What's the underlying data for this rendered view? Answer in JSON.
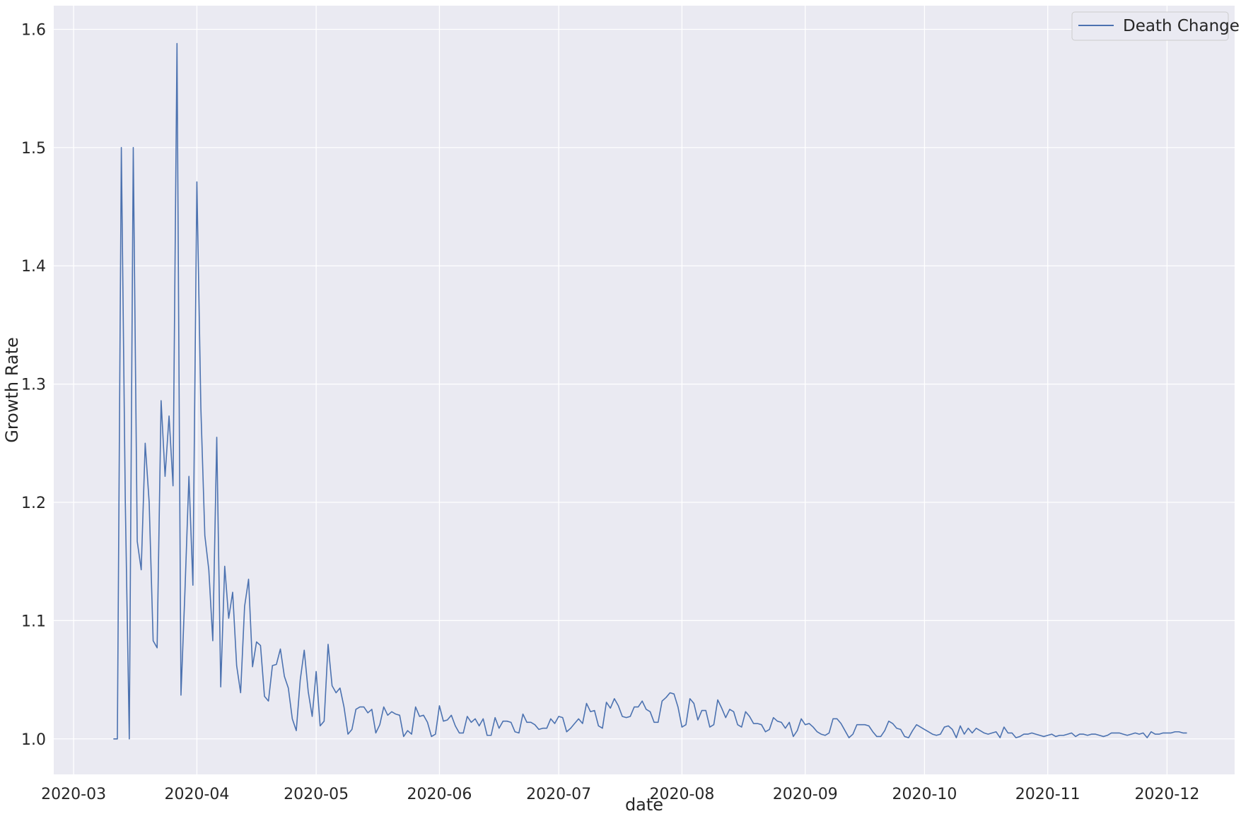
{
  "chart_data": {
    "type": "line",
    "title": "",
    "xlabel": "date",
    "ylabel": "Growth Rate",
    "grid": true,
    "legend_position": "top-right",
    "colors": {
      "background": "#eaeaf2",
      "grid": "#ffffff",
      "line": "#4c72b0"
    },
    "xlim": [
      "2020-02-25",
      "2020-12-18"
    ],
    "ylim": [
      0.97,
      1.62
    ],
    "x_ticks": [
      "2020-03-01",
      "2020-04-01",
      "2020-05-01",
      "2020-06-01",
      "2020-07-01",
      "2020-08-01",
      "2020-09-01",
      "2020-10-01",
      "2020-11-01",
      "2020-12-01"
    ],
    "x_tick_labels": [
      "2020-03",
      "2020-04",
      "2020-05",
      "2020-06",
      "2020-07",
      "2020-08",
      "2020-09",
      "2020-10",
      "2020-11",
      "2020-12"
    ],
    "y_ticks": [
      1.0,
      1.1,
      1.2,
      1.3,
      1.4,
      1.5,
      1.6
    ],
    "y_tick_labels": [
      "1.0",
      "1.1",
      "1.2",
      "1.3",
      "1.4",
      "1.5",
      "1.6"
    ],
    "series": [
      {
        "name": "Death Change",
        "start_date": "2020-03-11",
        "values": [
          1.0,
          1.0,
          1.5,
          1.2,
          1.0,
          1.5,
          1.167,
          1.143,
          1.25,
          1.2,
          1.083,
          1.077,
          1.286,
          1.222,
          1.273,
          1.214,
          1.588,
          1.037,
          1.125,
          1.222,
          1.13,
          1.471,
          1.28,
          1.172,
          1.143,
          1.083,
          1.255,
          1.044,
          1.146,
          1.102,
          1.124,
          1.062,
          1.039,
          1.112,
          1.135,
          1.061,
          1.082,
          1.079,
          1.036,
          1.032,
          1.062,
          1.063,
          1.076,
          1.053,
          1.043,
          1.017,
          1.007,
          1.05,
          1.075,
          1.04,
          1.019,
          1.057,
          1.011,
          1.015,
          1.08,
          1.045,
          1.039,
          1.043,
          1.027,
          1.004,
          1.008,
          1.025,
          1.027,
          1.027,
          1.022,
          1.025,
          1.005,
          1.012,
          1.027,
          1.02,
          1.023,
          1.021,
          1.02,
          1.002,
          1.007,
          1.004,
          1.027,
          1.019,
          1.02,
          1.014,
          1.002,
          1.004,
          1.028,
          1.015,
          1.016,
          1.02,
          1.011,
          1.005,
          1.005,
          1.019,
          1.014,
          1.017,
          1.011,
          1.017,
          1.003,
          1.003,
          1.018,
          1.009,
          1.015,
          1.015,
          1.014,
          1.006,
          1.005,
          1.021,
          1.014,
          1.014,
          1.012,
          1.008,
          1.009,
          1.009,
          1.017,
          1.013,
          1.019,
          1.018,
          1.006,
          1.009,
          1.013,
          1.017,
          1.013,
          1.03,
          1.023,
          1.024,
          1.011,
          1.009,
          1.031,
          1.026,
          1.034,
          1.028,
          1.019,
          1.018,
          1.019,
          1.027,
          1.027,
          1.032,
          1.025,
          1.023,
          1.014,
          1.014,
          1.032,
          1.035,
          1.039,
          1.038,
          1.027,
          1.01,
          1.012,
          1.034,
          1.03,
          1.016,
          1.024,
          1.024,
          1.01,
          1.012,
          1.033,
          1.026,
          1.018,
          1.025,
          1.023,
          1.012,
          1.01,
          1.023,
          1.019,
          1.013,
          1.013,
          1.012,
          1.006,
          1.008,
          1.018,
          1.015,
          1.014,
          1.009,
          1.014,
          1.002,
          1.007,
          1.017,
          1.012,
          1.013,
          1.01,
          1.006,
          1.004,
          1.003,
          1.005,
          1.017,
          1.017,
          1.013,
          1.007,
          1.001,
          1.004,
          1.012,
          1.012,
          1.012,
          1.011,
          1.006,
          1.002,
          1.002,
          1.007,
          1.015,
          1.013,
          1.009,
          1.008,
          1.002,
          1.001,
          1.007,
          1.012,
          1.01,
          1.008,
          1.006,
          1.004,
          1.003,
          1.004,
          1.01,
          1.011,
          1.008,
          1.001,
          1.011,
          1.004,
          1.009,
          1.005,
          1.009,
          1.007,
          1.005,
          1.004,
          1.005,
          1.006,
          1.001,
          1.01,
          1.005,
          1.005,
          1.001,
          1.002,
          1.004,
          1.004,
          1.005,
          1.004,
          1.003,
          1.002,
          1.003,
          1.004,
          1.002,
          1.003,
          1.003,
          1.004,
          1.005,
          1.002,
          1.004,
          1.004,
          1.003,
          1.004,
          1.004,
          1.003,
          1.002,
          1.003,
          1.005,
          1.005,
          1.005,
          1.004,
          1.003,
          1.004,
          1.005,
          1.004,
          1.005,
          1.001,
          1.006,
          1.004,
          1.004,
          1.005,
          1.005,
          1.005,
          1.006,
          1.006,
          1.005,
          1.005
        ]
      }
    ]
  }
}
